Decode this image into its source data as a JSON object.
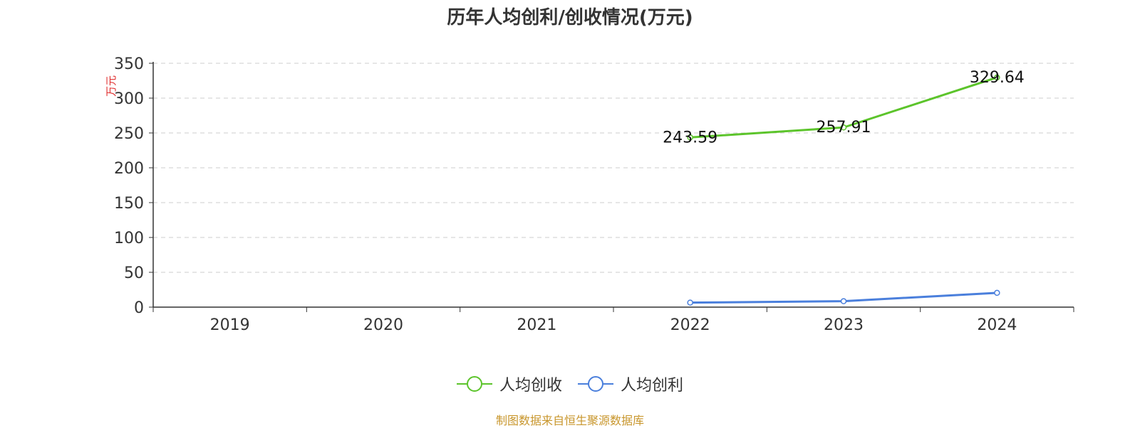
{
  "title": "历年人均创利/创收情况(万元)",
  "source": "制图数据来自恒生聚源数据库",
  "chart_data": {
    "type": "line",
    "categories": [
      "2019",
      "2020",
      "2021",
      "2022",
      "2023",
      "2024"
    ],
    "ylabel": "万元",
    "ylim": [
      0,
      350
    ],
    "yticks": [
      0,
      50,
      100,
      150,
      200,
      250,
      300,
      350
    ],
    "grid": true,
    "legend_position": "bottom",
    "series": [
      {
        "name": "人均创收",
        "color": "#5cc42b",
        "values": [
          null,
          null,
          null,
          243.59,
          257.91,
          329.64
        ],
        "labels": [
          "",
          "",
          "",
          "243.59",
          "257.91",
          "329.64"
        ]
      },
      {
        "name": "人均创利",
        "color": "#4a7fdc",
        "values": [
          null,
          null,
          null,
          6.5,
          8.5,
          20.5
        ],
        "labels": [
          "",
          "",
          "",
          "",
          "",
          ""
        ]
      }
    ]
  }
}
